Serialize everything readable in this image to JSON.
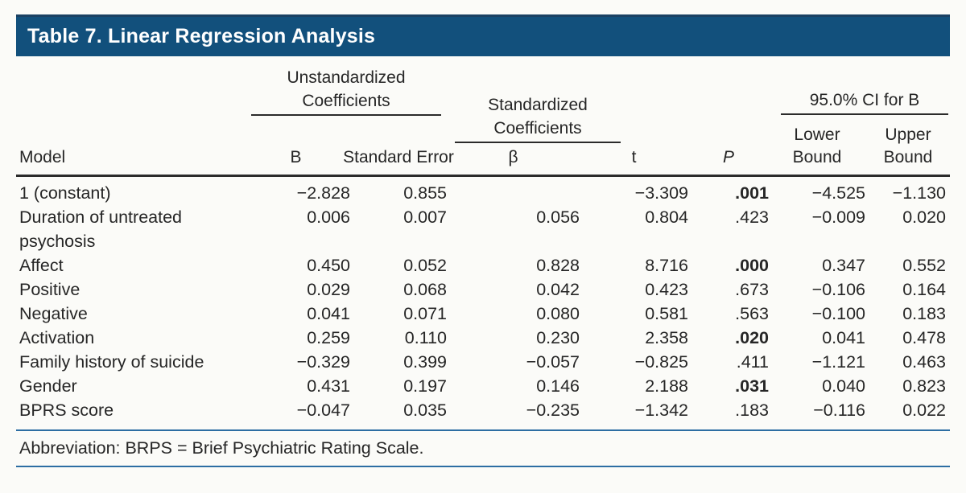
{
  "title": "Table 7. Linear Regression Analysis",
  "table": {
    "group_headers": {
      "unstandardized": "Unstandardized Coefficients",
      "standardized": "Standardized Coefficients",
      "ci": "95.0% CI for B"
    },
    "columns": {
      "model": "Model",
      "b": "B",
      "std_error": "Standard Error",
      "beta": "β",
      "t": "t",
      "p": "P",
      "lower": "Lower Bound",
      "upper": "Upper Bound"
    },
    "rows": [
      {
        "model": "1 (constant)",
        "b": "−2.828",
        "se": "0.855",
        "beta": "",
        "t": "−3.309",
        "p": ".001",
        "p_bold": true,
        "lower": "−4.525",
        "upper": "−1.130"
      },
      {
        "model": "Duration of untreated psychosis",
        "b": "0.006",
        "se": "0.007",
        "beta": "0.056",
        "t": "0.804",
        "p": ".423",
        "p_bold": false,
        "lower": "−0.009",
        "upper": "0.020"
      },
      {
        "model": "Affect",
        "b": "0.450",
        "se": "0.052",
        "beta": "0.828",
        "t": "8.716",
        "p": ".000",
        "p_bold": true,
        "lower": "0.347",
        "upper": "0.552"
      },
      {
        "model": "Positive",
        "b": "0.029",
        "se": "0.068",
        "beta": "0.042",
        "t": "0.423",
        "p": ".673",
        "p_bold": false,
        "lower": "−0.106",
        "upper": "0.164"
      },
      {
        "model": "Negative",
        "b": "0.041",
        "se": "0.071",
        "beta": "0.080",
        "t": "0.581",
        "p": ".563",
        "p_bold": false,
        "lower": "−0.100",
        "upper": "0.183"
      },
      {
        "model": "Activation",
        "b": "0.259",
        "se": "0.110",
        "beta": "0.230",
        "t": "2.358",
        "p": ".020",
        "p_bold": true,
        "lower": "0.041",
        "upper": "0.478"
      },
      {
        "model": "Family history of suicide",
        "b": "−0.329",
        "se": "0.399",
        "beta": "−0.057",
        "t": "−0.825",
        "p": ".411",
        "p_bold": false,
        "lower": "−1.121",
        "upper": "0.463"
      },
      {
        "model": "Gender",
        "b": "0.431",
        "se": "0.197",
        "beta": "0.146",
        "t": "2.188",
        "p": ".031",
        "p_bold": true,
        "lower": "0.040",
        "upper": "0.823"
      },
      {
        "model": "BPRS score",
        "b": "−0.047",
        "se": "0.035",
        "beta": "−0.235",
        "t": "−1.342",
        "p": ".183",
        "p_bold": false,
        "lower": "−0.116",
        "upper": "0.022"
      }
    ],
    "footnote": "Abbreviation: BRPS = Brief Psychiatric Rating Scale."
  },
  "colors": {
    "header_bar": "#12507C",
    "header_bar_top": "#1B4163",
    "rule_dark": "#2B2B2B",
    "rule_blue": "#2D6EA3",
    "body_text": "#262626",
    "title_text": "#FFFFFF",
    "background": "#FBFBF8"
  }
}
